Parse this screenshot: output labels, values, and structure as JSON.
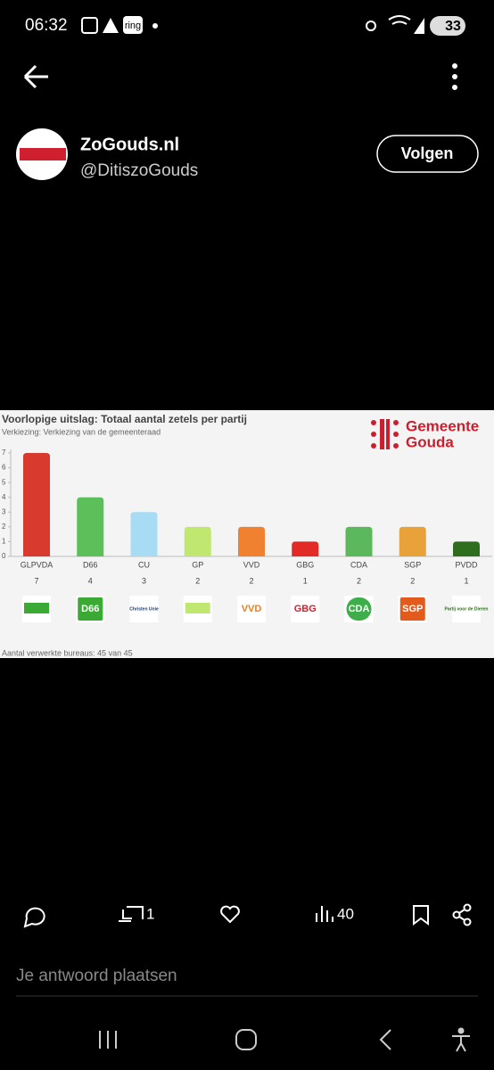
{
  "status_bar": {
    "time": "06:32",
    "app_badge": "ring",
    "battery": "33"
  },
  "tweet": {
    "name": "ZoGouds.nl",
    "handle": "@DitiszoGouds",
    "follow": "Volgen"
  },
  "chart_data": {
    "type": "bar",
    "title": "Voorlopige uitslag: Totaal aantal zetels per partij",
    "subtitle": "Verkiezing: Verkiezing van de gemeenteraad",
    "brand": [
      "Gemeente",
      "Gouda"
    ],
    "categories": [
      "GLPVDA",
      "D66",
      "CU",
      "GP",
      "VVD",
      "GBG",
      "CDA",
      "SGP",
      "PVDD"
    ],
    "values": [
      7,
      4,
      3,
      2,
      2,
      1,
      2,
      2,
      1
    ],
    "colors": [
      "#d93a2e",
      "#5cbf5a",
      "#a8dcf4",
      "#c0e870",
      "#ef8130",
      "#e22a26",
      "#5cb85c",
      "#e9a23a",
      "#2e6e1e"
    ],
    "ylim": [
      0,
      7
    ],
    "yticks": [
      0,
      1,
      2,
      3,
      4,
      5,
      6,
      7
    ],
    "footnote": "Aantal verwerkte bureaus: 45 van 45"
  },
  "party_logos": [
    "D66",
    "Christen Unie",
    "VVD",
    "GBG",
    "CDA",
    "SGP",
    "Partij voor de Dieren"
  ],
  "actions": {
    "retweets": "1",
    "views": "40"
  },
  "reply_placeholder": "Je antwoord plaatsen"
}
